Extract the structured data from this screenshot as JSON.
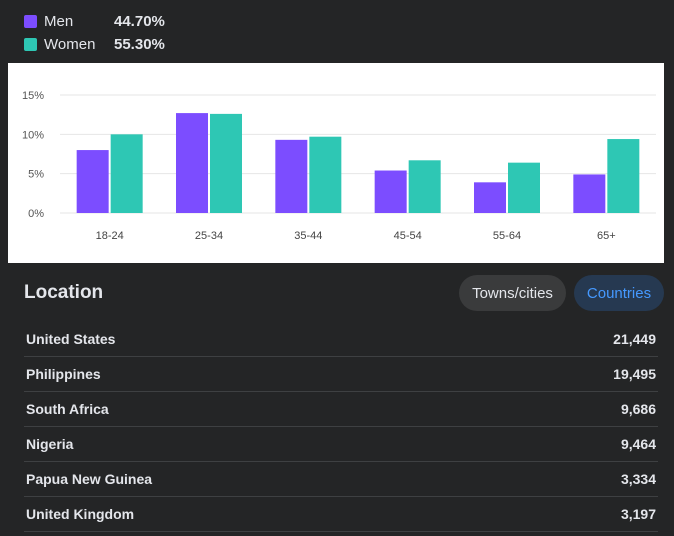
{
  "legend": {
    "men": {
      "label": "Men",
      "pct": "44.70%",
      "color": "#7c4dff"
    },
    "women": {
      "label": "Women",
      "pct": "55.30%",
      "color": "#2ec7b4"
    }
  },
  "chart_data": {
    "type": "bar",
    "categories": [
      "18-24",
      "25-34",
      "35-44",
      "45-54",
      "55-64",
      "65+"
    ],
    "series": [
      {
        "name": "Men",
        "color": "#7c4dff",
        "values": [
          8.0,
          12.7,
          9.3,
          5.4,
          3.9,
          4.9
        ]
      },
      {
        "name": "Women",
        "color": "#2ec7b4",
        "values": [
          10.0,
          12.6,
          9.7,
          6.7,
          6.4,
          9.4
        ]
      }
    ],
    "yticks": [
      "0%",
      "5%",
      "10%",
      "15%"
    ],
    "ytick_values": [
      0,
      5,
      10,
      15
    ],
    "ylim": [
      0,
      15
    ],
    "title": "",
    "xlabel": "",
    "ylabel": "",
    "grid": true
  },
  "location": {
    "title": "Location",
    "tabs": {
      "towns": "Towns/cities",
      "countries": "Countries"
    },
    "rows": [
      {
        "name": "United States",
        "value": "21,449"
      },
      {
        "name": "Philippines",
        "value": "19,495"
      },
      {
        "name": "South Africa",
        "value": "9,686"
      },
      {
        "name": "Nigeria",
        "value": "9,464"
      },
      {
        "name": "Papua New Guinea",
        "value": "3,334"
      },
      {
        "name": "United Kingdom",
        "value": "3,197"
      }
    ]
  }
}
